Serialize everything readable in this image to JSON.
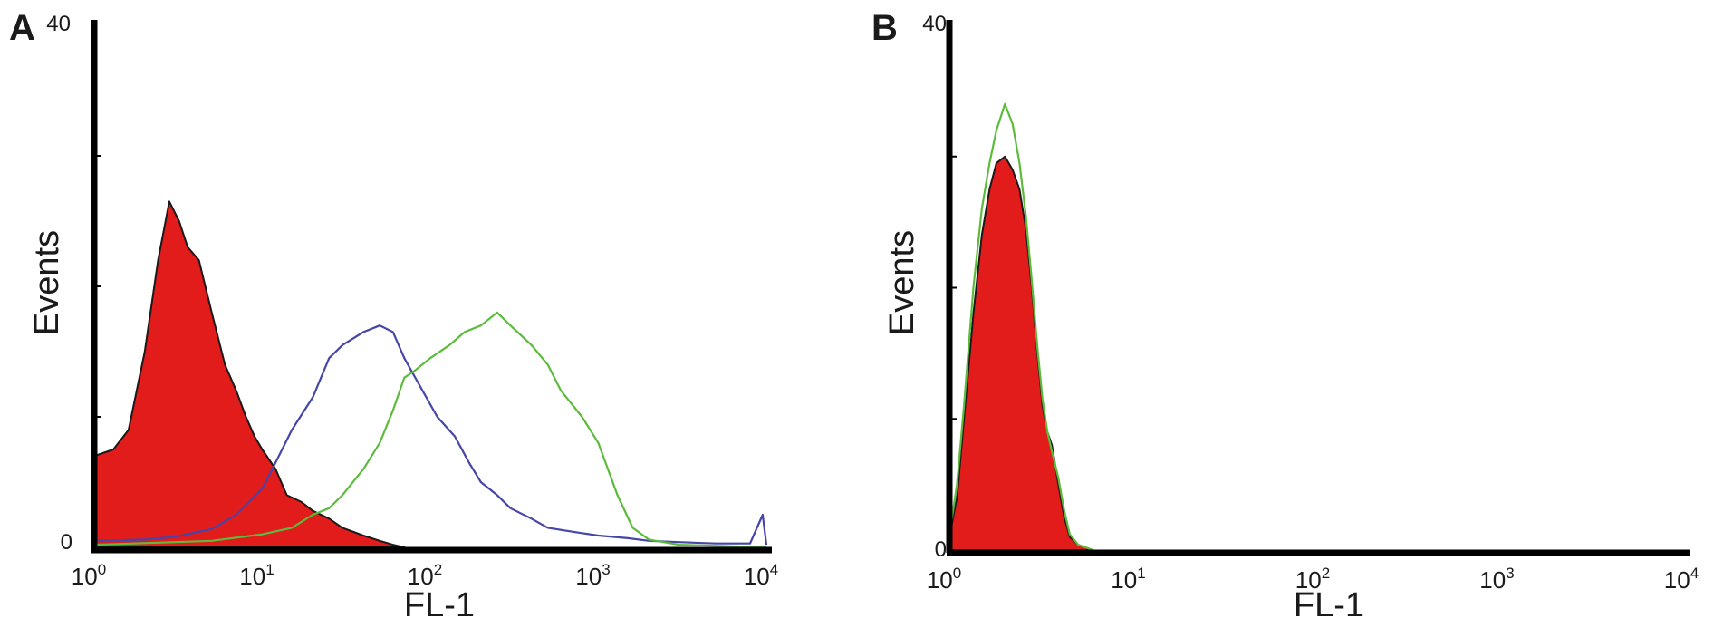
{
  "chart_data": [
    {
      "panel_label": "A",
      "type": "area",
      "xscale": "log",
      "xlim": [
        1,
        10000
      ],
      "ylim": [
        0,
        40
      ],
      "ytick_labels": [
        "0",
        "40"
      ],
      "xtick_labels": [
        {
          "base": "10",
          "exp": "0"
        },
        {
          "base": "10",
          "exp": "1"
        },
        {
          "base": "10",
          "exp": "2"
        },
        {
          "base": "10",
          "exp": "3"
        },
        {
          "base": "10",
          "exp": "4"
        }
      ],
      "xlabel": "FL-1",
      "ylabel": "Events",
      "series": [
        {
          "color": "#e21b1b",
          "style": "filled",
          "x": [
            1,
            1.3,
            1.6,
            2,
            2.4,
            2.8,
            3.2,
            3.6,
            4.2,
            5,
            6,
            7,
            8,
            9,
            10,
            12,
            14,
            17,
            20,
            25,
            30,
            40,
            50,
            60,
            70
          ],
          "y": [
            7,
            7.5,
            9,
            15,
            22,
            26.5,
            25,
            23,
            22,
            18,
            14,
            12,
            10,
            8.5,
            7.5,
            6,
            4,
            3.5,
            2.8,
            2.2,
            1.5,
            0.9,
            0.5,
            0.2,
            0
          ]
        },
        {
          "color": "#4646a8",
          "style": "line",
          "x": [
            1,
            2,
            3,
            5,
            7,
            10,
            12,
            15,
            20,
            25,
            30,
            40,
            50,
            60,
            70,
            90,
            110,
            140,
            170,
            200,
            250,
            300,
            400,
            500,
            700,
            1000,
            1500,
            2000,
            3000,
            5000,
            8000,
            9500,
            10000
          ],
          "y": [
            0.5,
            0.6,
            0.8,
            1.4,
            2.5,
            4.5,
            6.5,
            9,
            11.5,
            14.5,
            15.5,
            16.5,
            17,
            16.5,
            14.5,
            12,
            10,
            8.5,
            6.5,
            5,
            4,
            3,
            2.2,
            1.5,
            1.2,
            0.9,
            0.7,
            0.5,
            0.4,
            0.3,
            0.3,
            2.5,
            0.2
          ]
        },
        {
          "color": "#5dbb3c",
          "style": "line",
          "x": [
            1,
            5,
            10,
            15,
            20,
            25,
            30,
            40,
            50,
            60,
            70,
            80,
            100,
            130,
            160,
            200,
            250,
            300,
            400,
            500,
            600,
            800,
            1000,
            1300,
            1600,
            2000,
            3000,
            10000
          ],
          "y": [
            0.2,
            0.5,
            1,
            1.5,
            2.5,
            3,
            4,
            6,
            8,
            10.5,
            13,
            13.5,
            14.5,
            15.5,
            16.5,
            17,
            18,
            17,
            15.5,
            14,
            12,
            10,
            8,
            4,
            1.5,
            0.6,
            0.2,
            0
          ]
        }
      ]
    },
    {
      "panel_label": "B",
      "type": "area",
      "xscale": "log",
      "xlim": [
        1,
        10000
      ],
      "ylim": [
        0,
        40
      ],
      "ytick_labels": [
        "0",
        "40"
      ],
      "xtick_labels": [
        {
          "base": "10",
          "exp": "0"
        },
        {
          "base": "10",
          "exp": "1"
        },
        {
          "base": "10",
          "exp": "2"
        },
        {
          "base": "10",
          "exp": "3"
        },
        {
          "base": "10",
          "exp": "4"
        }
      ],
      "xlabel": "FL-1",
      "ylabel": "Events",
      "series": [
        {
          "color": "#e21b1b",
          "style": "filled",
          "x": [
            1,
            1.1,
            1.2,
            1.35,
            1.5,
            1.65,
            1.8,
            2,
            2.2,
            2.4,
            2.6,
            2.8,
            3,
            3.2,
            3.4,
            3.6,
            3.9,
            4.2,
            4.5,
            5,
            6
          ],
          "y": [
            1,
            4,
            10,
            18,
            24,
            27.5,
            29.5,
            30,
            29,
            27.5,
            24.5,
            20,
            15,
            11,
            9,
            8,
            5,
            2.5,
            1,
            0.4,
            0
          ]
        },
        {
          "color": "#5dbb3c",
          "style": "line",
          "x": [
            1,
            1.1,
            1.2,
            1.35,
            1.5,
            1.65,
            1.8,
            2,
            2.2,
            2.4,
            2.6,
            2.8,
            3,
            3.2,
            3.4,
            3.6,
            3.9,
            4.2,
            4.5,
            5,
            6
          ],
          "y": [
            1.2,
            5,
            11,
            20,
            26,
            29.5,
            32,
            34,
            32.5,
            29.5,
            25.5,
            20.5,
            15.5,
            11.5,
            9,
            7.5,
            5.5,
            3,
            1.2,
            0.4,
            0
          ]
        }
      ]
    }
  ]
}
